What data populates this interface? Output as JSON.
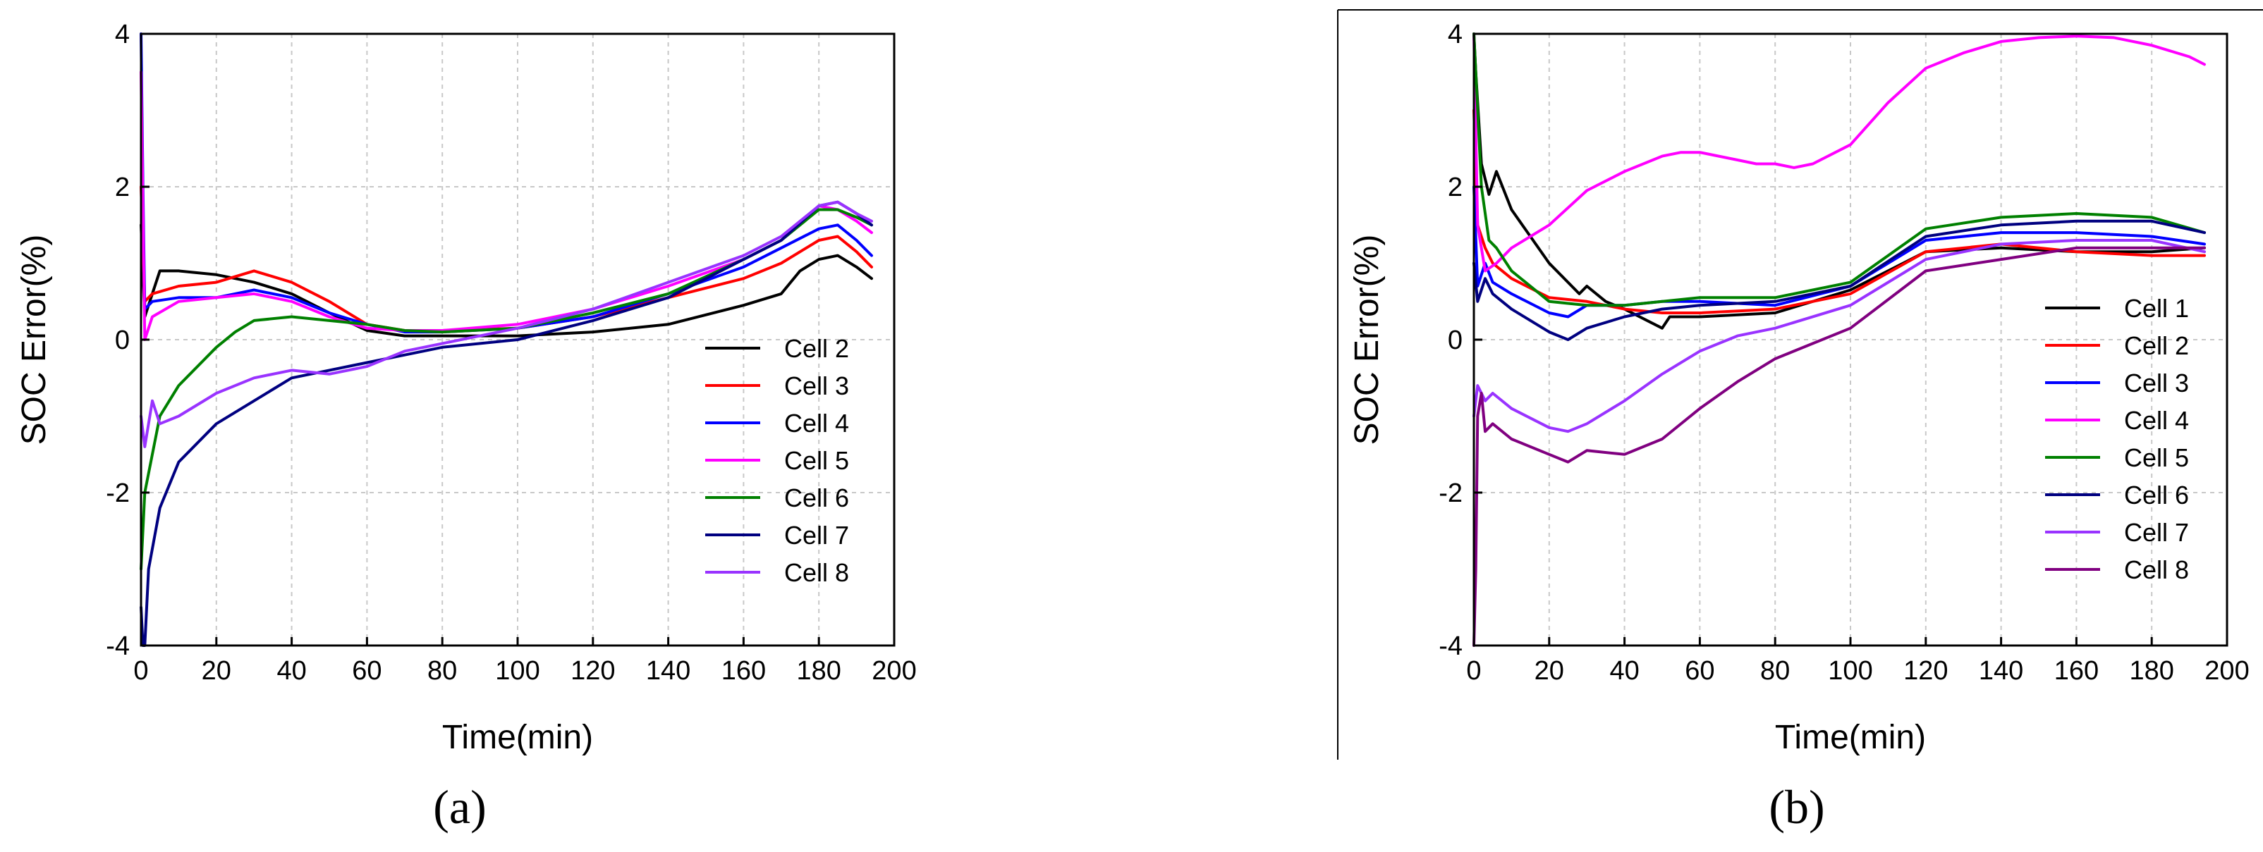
{
  "chart_data": [
    {
      "type": "line",
      "panel_label": "(a)",
      "xlabel": "Time(min)",
      "ylabel": "SOC Error(%)",
      "xlim": [
        0,
        200
      ],
      "ylim": [
        -4,
        4
      ],
      "xticks": [
        0,
        20,
        40,
        60,
        80,
        100,
        120,
        140,
        160,
        180,
        200
      ],
      "yticks": [
        -4,
        -2,
        0,
        2,
        4
      ],
      "grid": true,
      "legend_position": "bottom-right",
      "series": [
        {
          "name": "Cell 2",
          "color": "#000000",
          "x": [
            0,
            1,
            3,
            5,
            10,
            20,
            30,
            40,
            50,
            60,
            70,
            80,
            100,
            120,
            140,
            160,
            170,
            175,
            180,
            185,
            190,
            194
          ],
          "y": [
            1.5,
            0.3,
            0.6,
            0.9,
            0.9,
            0.85,
            0.75,
            0.6,
            0.35,
            0.12,
            0.05,
            0.05,
            0.05,
            0.1,
            0.2,
            0.45,
            0.6,
            0.9,
            1.05,
            1.1,
            0.95,
            0.8
          ]
        },
        {
          "name": "Cell 3",
          "color": "#ff0000",
          "x": [
            0,
            1,
            3,
            10,
            20,
            30,
            40,
            50,
            60,
            70,
            80,
            100,
            120,
            140,
            160,
            170,
            180,
            185,
            190,
            194
          ],
          "y": [
            2.0,
            0.5,
            0.6,
            0.7,
            0.75,
            0.9,
            0.75,
            0.5,
            0.2,
            0.12,
            0.12,
            0.15,
            0.3,
            0.55,
            0.8,
            1.0,
            1.3,
            1.35,
            1.15,
            0.95
          ]
        },
        {
          "name": "Cell 4",
          "color": "#0000ff",
          "x": [
            0,
            0.5,
            1,
            3,
            10,
            20,
            30,
            40,
            50,
            60,
            70,
            80,
            100,
            120,
            140,
            160,
            170,
            180,
            185,
            190,
            194
          ],
          "y": [
            4.0,
            2.0,
            0.4,
            0.5,
            0.55,
            0.55,
            0.65,
            0.55,
            0.35,
            0.2,
            0.1,
            0.1,
            0.15,
            0.3,
            0.6,
            0.95,
            1.2,
            1.45,
            1.5,
            1.3,
            1.1
          ]
        },
        {
          "name": "Cell 5",
          "color": "#ff00ff",
          "x": [
            0,
            1,
            3,
            10,
            20,
            30,
            40,
            50,
            60,
            70,
            80,
            100,
            120,
            140,
            160,
            170,
            180,
            185,
            190,
            194
          ],
          "y": [
            3.5,
            0.0,
            0.3,
            0.5,
            0.55,
            0.6,
            0.5,
            0.3,
            0.15,
            0.12,
            0.12,
            0.2,
            0.4,
            0.7,
            1.05,
            1.3,
            1.75,
            1.7,
            1.55,
            1.4
          ]
        },
        {
          "name": "Cell 6",
          "color": "#008000",
          "x": [
            0,
            1,
            3,
            5,
            10,
            20,
            25,
            30,
            40,
            50,
            60,
            70,
            80,
            100,
            120,
            140,
            160,
            170,
            180,
            185,
            190,
            194
          ],
          "y": [
            -3.0,
            -2.0,
            -1.5,
            -1.0,
            -0.6,
            -0.1,
            0.1,
            0.25,
            0.3,
            0.25,
            0.2,
            0.12,
            0.1,
            0.15,
            0.35,
            0.6,
            1.05,
            1.3,
            1.7,
            1.7,
            1.6,
            1.5
          ]
        },
        {
          "name": "Cell 7",
          "color": "#000080",
          "x": [
            0,
            0.5,
            1,
            2,
            5,
            10,
            20,
            30,
            40,
            50,
            60,
            70,
            80,
            100,
            120,
            140,
            160,
            170,
            180,
            185,
            190,
            194
          ],
          "y": [
            -3.5,
            -4.0,
            -4.0,
            -3.0,
            -2.2,
            -1.6,
            -1.1,
            -0.8,
            -0.5,
            -0.4,
            -0.3,
            -0.2,
            -0.1,
            0.0,
            0.25,
            0.55,
            1.05,
            1.3,
            1.75,
            1.8,
            1.65,
            1.5
          ]
        },
        {
          "name": "Cell 8",
          "color": "#9933ff",
          "x": [
            0,
            1,
            3,
            5,
            10,
            20,
            30,
            40,
            50,
            60,
            70,
            80,
            100,
            120,
            140,
            160,
            170,
            180,
            185,
            190,
            194
          ],
          "y": [
            -1.0,
            -1.4,
            -0.8,
            -1.1,
            -1.0,
            -0.7,
            -0.5,
            -0.4,
            -0.45,
            -0.35,
            -0.15,
            -0.05,
            0.15,
            0.4,
            0.75,
            1.1,
            1.35,
            1.75,
            1.8,
            1.65,
            1.55
          ]
        }
      ]
    },
    {
      "type": "line",
      "panel_label": "(b)",
      "xlabel": "Time(min)",
      "ylabel": "SOC Error(%)",
      "xlim": [
        0,
        200
      ],
      "ylim": [
        -4,
        4
      ],
      "xticks": [
        0,
        20,
        40,
        60,
        80,
        100,
        120,
        140,
        160,
        180,
        200
      ],
      "yticks": [
        -4,
        -2,
        0,
        2,
        4
      ],
      "grid": true,
      "legend_position": "bottom-right",
      "series": [
        {
          "name": "Cell 1",
          "color": "#000000",
          "x": [
            0,
            0.5,
            2,
            4,
            6,
            10,
            20,
            28,
            30,
            35,
            40,
            50,
            52,
            55,
            60,
            80,
            100,
            120,
            140,
            160,
            180,
            194
          ],
          "y": [
            4.0,
            3.5,
            2.3,
            1.9,
            2.2,
            1.7,
            1.0,
            0.6,
            0.7,
            0.5,
            0.4,
            0.15,
            0.3,
            0.3,
            0.3,
            0.35,
            0.65,
            1.15,
            1.2,
            1.15,
            1.15,
            1.2
          ]
        },
        {
          "name": "Cell 2",
          "color": "#ff0000",
          "x": [
            0,
            1,
            3,
            5,
            10,
            20,
            30,
            40,
            50,
            60,
            80,
            100,
            120,
            140,
            160,
            180,
            194
          ],
          "y": [
            3.0,
            1.5,
            1.2,
            1.0,
            0.8,
            0.55,
            0.5,
            0.4,
            0.35,
            0.35,
            0.4,
            0.6,
            1.15,
            1.25,
            1.15,
            1.1,
            1.1
          ]
        },
        {
          "name": "Cell 3",
          "color": "#0000ff",
          "x": [
            0,
            1,
            3,
            5,
            10,
            20,
            25,
            30,
            40,
            50,
            60,
            80,
            100,
            120,
            140,
            160,
            180,
            194
          ],
          "y": [
            2.0,
            0.7,
            1.0,
            0.75,
            0.6,
            0.35,
            0.3,
            0.45,
            0.45,
            0.5,
            0.5,
            0.45,
            0.7,
            1.3,
            1.4,
            1.4,
            1.35,
            1.25
          ]
        },
        {
          "name": "Cell 4",
          "color": "#ff00ff",
          "x": [
            0,
            1,
            3,
            6,
            10,
            20,
            30,
            40,
            50,
            55,
            60,
            70,
            75,
            80,
            85,
            90,
            100,
            110,
            120,
            130,
            140,
            150,
            160,
            170,
            180,
            190,
            194
          ],
          "y": [
            4.0,
            1.5,
            0.9,
            1.0,
            1.2,
            1.5,
            1.95,
            2.2,
            2.4,
            2.45,
            2.45,
            2.35,
            2.3,
            2.3,
            2.25,
            2.3,
            2.55,
            3.1,
            3.55,
            3.75,
            3.9,
            3.95,
            3.97,
            3.95,
            3.85,
            3.7,
            3.6
          ]
        },
        {
          "name": "Cell 5",
          "color": "#008000",
          "x": [
            0,
            0.5,
            2,
            4,
            6,
            10,
            20,
            30,
            40,
            50,
            60,
            80,
            100,
            120,
            140,
            160,
            180,
            194
          ],
          "y": [
            4.0,
            3.5,
            2.0,
            1.3,
            1.2,
            0.9,
            0.5,
            0.45,
            0.45,
            0.5,
            0.55,
            0.55,
            0.75,
            1.45,
            1.6,
            1.65,
            1.6,
            1.4
          ]
        },
        {
          "name": "Cell 6",
          "color": "#000080",
          "x": [
            0,
            1,
            3,
            5,
            10,
            20,
            25,
            30,
            40,
            50,
            60,
            80,
            100,
            120,
            140,
            160,
            180,
            194
          ],
          "y": [
            1.0,
            0.5,
            0.8,
            0.6,
            0.4,
            0.1,
            0.0,
            0.15,
            0.3,
            0.4,
            0.45,
            0.5,
            0.7,
            1.35,
            1.5,
            1.55,
            1.55,
            1.4
          ]
        },
        {
          "name": "Cell 7",
          "color": "#9933ff",
          "x": [
            0,
            1,
            3,
            5,
            10,
            20,
            25,
            30,
            40,
            50,
            60,
            70,
            80,
            100,
            120,
            140,
            160,
            180,
            194
          ],
          "y": [
            -1.0,
            -0.6,
            -0.8,
            -0.7,
            -0.9,
            -1.15,
            -1.2,
            -1.1,
            -0.8,
            -0.45,
            -0.15,
            0.05,
            0.15,
            0.45,
            1.05,
            1.25,
            1.3,
            1.3,
            1.15
          ]
        },
        {
          "name": "Cell 8",
          "color": "#800080",
          "x": [
            0,
            0.5,
            1,
            2,
            3,
            5,
            10,
            20,
            25,
            30,
            40,
            50,
            60,
            70,
            80,
            100,
            120,
            140,
            160,
            180,
            194
          ],
          "y": [
            -4.0,
            -3.0,
            -1.0,
            -0.7,
            -1.2,
            -1.1,
            -1.3,
            -1.5,
            -1.6,
            -1.45,
            -1.5,
            -1.3,
            -0.9,
            -0.55,
            -0.25,
            0.15,
            0.9,
            1.05,
            1.2,
            1.2,
            1.2
          ]
        }
      ]
    }
  ]
}
